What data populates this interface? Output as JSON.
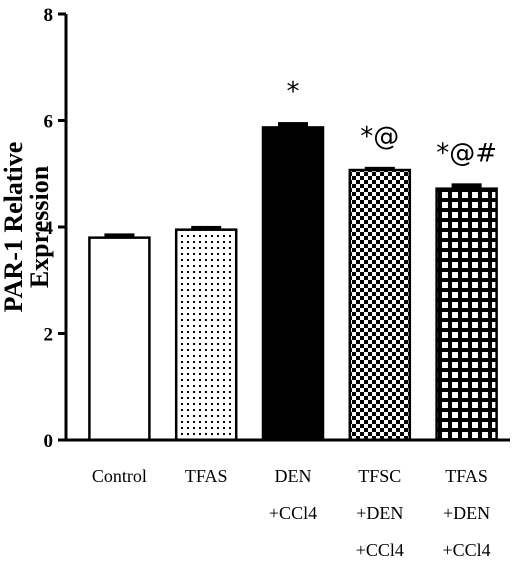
{
  "chart_data": {
    "type": "bar",
    "categories": [
      [
        "Control"
      ],
      [
        "TFAS"
      ],
      [
        "DEN",
        "+CCl4"
      ],
      [
        "TFSC",
        "+DEN",
        "+CCl4"
      ],
      [
        "TFAS",
        "+DEN",
        "+CCl4"
      ]
    ],
    "values": [
      3.8,
      3.95,
      5.87,
      5.07,
      4.72
    ],
    "errors": [
      0.08,
      0.07,
      0.1,
      0.06,
      0.1
    ],
    "annotations": [
      "",
      "",
      "*",
      "*@",
      "*@#"
    ],
    "patterns": [
      "white",
      "dots",
      "black",
      "checker",
      "grid"
    ],
    "title": "",
    "xlabel": "",
    "ylabel": [
      "PAR-1 Relative",
      "Expression"
    ],
    "ylim": [
      0,
      8
    ],
    "yticks": [
      0,
      2,
      4,
      6,
      8
    ],
    "grid": false,
    "legend": "none"
  }
}
